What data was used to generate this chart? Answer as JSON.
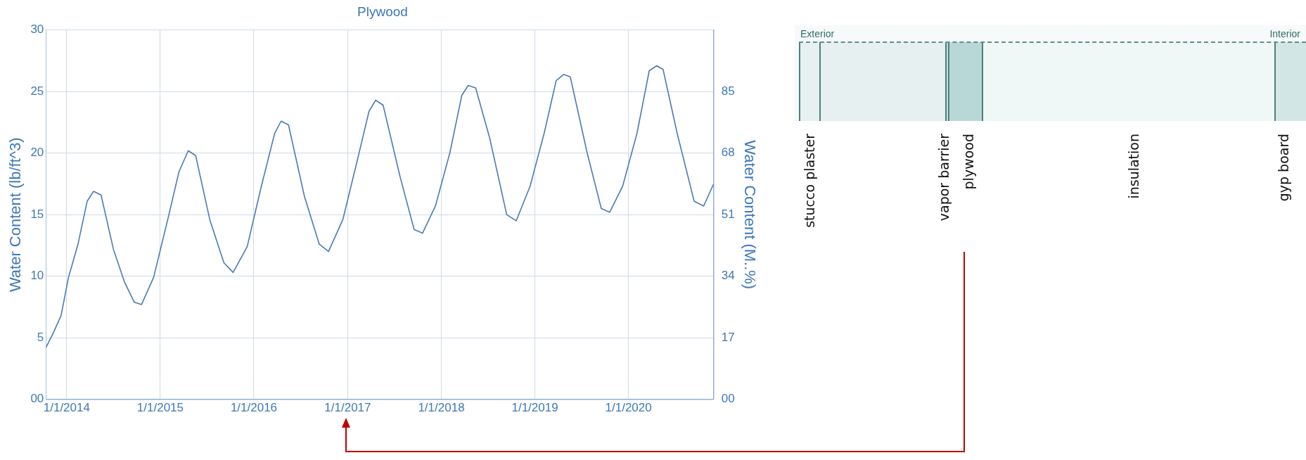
{
  "chart_data": [
    {
      "type": "line",
      "title": "Plywood",
      "ylabel": "Water Content (lb/ft^3)",
      "y2label": "Water Content (M..%)",
      "x": [
        "2013-10-12",
        "2013-11-10",
        "2013-12-10",
        "2014-01-08",
        "2014-02-14",
        "2014-03-22",
        "2014-04-16",
        "2014-05-15",
        "2014-07-02",
        "2014-08-15",
        "2014-09-21",
        "2014-10-20",
        "2014-12-06",
        "2015-01-30",
        "2015-03-15",
        "2015-04-20",
        "2015-05-19",
        "2015-07-13",
        "2015-09-06",
        "2015-10-12",
        "2015-12-06",
        "2016-01-30",
        "2016-03-22",
        "2016-04-16",
        "2016-05-15",
        "2016-07-16",
        "2016-09-12",
        "2016-10-18",
        "2016-12-13",
        "2017-02-06",
        "2017-03-25",
        "2017-04-20",
        "2017-05-19",
        "2017-07-24",
        "2017-09-17",
        "2017-10-20",
        "2017-12-09",
        "2018-02-03",
        "2018-03-22",
        "2018-04-16",
        "2018-05-15",
        "2018-07-09",
        "2018-09-13",
        "2018-10-20",
        "2018-12-13",
        "2019-02-06",
        "2019-03-25",
        "2019-04-23",
        "2019-05-19",
        "2019-07-24",
        "2019-09-17",
        "2019-10-20",
        "2019-12-09",
        "2020-02-03",
        "2020-03-22",
        "2020-04-20",
        "2020-05-15",
        "2020-07-09",
        "2020-09-13",
        "2020-10-20",
        "2020-11-28"
      ],
      "series": [
        {
          "color": "#4a7ab5",
          "values": [
            4.2,
            5.4,
            6.8,
            9.9,
            12.6,
            16.1,
            16.9,
            16.6,
            12.2,
            9.5,
            7.9,
            7.7,
            9.9,
            14.6,
            18.5,
            20.2,
            19.8,
            14.6,
            11.1,
            10.3,
            12.4,
            17.3,
            21.6,
            22.6,
            22.3,
            16.5,
            12.6,
            12.0,
            14.6,
            19.3,
            23.4,
            24.3,
            23.9,
            18.1,
            13.8,
            13.5,
            15.7,
            20.0,
            24.7,
            25.5,
            25.3,
            21.2,
            15.0,
            14.5,
            17.3,
            21.6,
            25.9,
            26.4,
            26.2,
            20.0,
            15.5,
            15.2,
            17.3,
            21.6,
            26.7,
            27.1,
            26.8,
            21.6,
            16.1,
            15.7,
            17.5
          ]
        }
      ],
      "xlim": [
        "2013-10-12",
        "2020-11-28"
      ],
      "xticks": [
        {
          "value": "2014-01-01",
          "label": "1/1/2014"
        },
        {
          "value": "2015-01-01",
          "label": "1/1/2015"
        },
        {
          "value": "2016-01-01",
          "label": "1/1/2016"
        },
        {
          "value": "2017-01-01",
          "label": "1/1/2017"
        },
        {
          "value": "2018-01-01",
          "label": "1/1/2018"
        },
        {
          "value": "2019-01-01",
          "label": "1/1/2019"
        },
        {
          "value": "2020-01-01",
          "label": "1/1/2020"
        }
      ],
      "ylim": [
        0,
        30
      ],
      "yticks": [
        {
          "value": 0,
          "label": "00"
        },
        5,
        10,
        15,
        20,
        25,
        30
      ],
      "y2lim": [
        0,
        102
      ],
      "y2ticks": [
        {
          "value": 0,
          "label": "00"
        },
        17,
        34,
        51,
        68,
        85
      ],
      "grid": true,
      "legend": false,
      "marker": "none",
      "line_style": "solid"
    },
    {
      "type": "other",
      "annotations": [
        "Exterior",
        "Interior",
        "stucco plaster",
        "vapor barrier",
        "plywood",
        "insulation",
        "gyp board"
      ]
    }
  ]
}
